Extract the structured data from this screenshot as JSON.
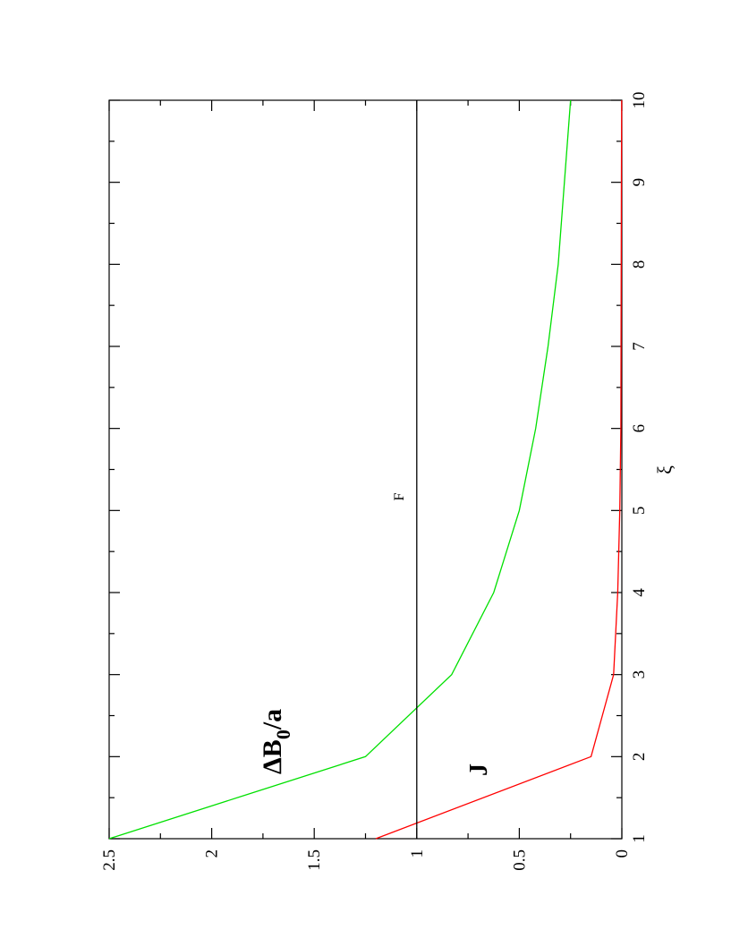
{
  "chart_data": {
    "type": "line",
    "orientation": "rotated 90 degrees counter-clockwise",
    "xlabel": "ξ",
    "ylabel": "",
    "xlim": [
      1,
      10
    ],
    "ylim": [
      0,
      2.5
    ],
    "xticks": [
      "1",
      "2",
      "3",
      "4",
      "5",
      "6",
      "7",
      "8",
      "9",
      "10"
    ],
    "yticks": [
      "0",
      "0.5",
      "1",
      "1.5",
      "2",
      "2.5"
    ],
    "grid": false,
    "series": [
      {
        "name": "ΔB",
        "label_subscript": "0",
        "label_suffix": "/a",
        "color": "#00e000",
        "x": [
          1,
          2,
          3,
          4,
          5,
          6,
          7,
          8,
          9,
          10
        ],
        "y": [
          2.5,
          1.25,
          0.83,
          0.625,
          0.5,
          0.42,
          0.36,
          0.31,
          0.28,
          0.25
        ]
      },
      {
        "name": "J",
        "color": "#ff0000",
        "x": [
          1,
          2,
          3,
          4,
          5,
          6,
          7,
          8,
          9,
          10
        ],
        "y": [
          1.2,
          0.15,
          0.04,
          0.02,
          0.01,
          0.005,
          0.004,
          0.003,
          0.002,
          0.001
        ]
      },
      {
        "name": "F",
        "color": "#000000",
        "x": [
          1,
          10
        ],
        "y": [
          1,
          1
        ]
      }
    ]
  }
}
